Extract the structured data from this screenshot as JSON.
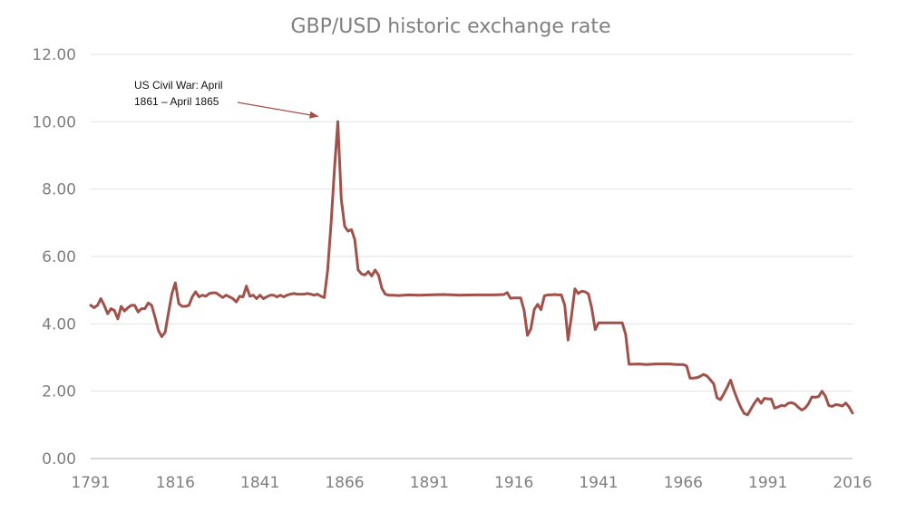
{
  "chart_data": {
    "type": "line",
    "title": "GBP/USD historic exchange rate",
    "xlabel": "",
    "ylabel": "",
    "x_range": [
      1791,
      2016
    ],
    "ylim": [
      0,
      12
    ],
    "x_ticks": [
      "1791",
      "1816",
      "1841",
      "1866",
      "1891",
      "1916",
      "1941",
      "1966",
      "1991",
      "2016"
    ],
    "y_ticks": [
      "0.00",
      "2.00",
      "4.00",
      "6.00",
      "8.00",
      "10.00",
      "12.00"
    ],
    "grid": true,
    "legend": "none",
    "colors": {
      "line": "#a0524a",
      "grid": "#e2e2e2",
      "text": "#7f7f7f",
      "arrow": "#a0524a"
    },
    "annotation": {
      "lines": [
        "US Civil War: April",
        "1861 – April 1865"
      ],
      "point_to": [
        1864,
        10.0
      ]
    },
    "series": [
      {
        "points": [
          [
            1791,
            4.55
          ],
          [
            1792,
            4.48
          ],
          [
            1793,
            4.55
          ],
          [
            1794,
            4.75
          ],
          [
            1795,
            4.55
          ],
          [
            1796,
            4.3
          ],
          [
            1797,
            4.45
          ],
          [
            1798,
            4.4
          ],
          [
            1799,
            4.15
          ],
          [
            1800,
            4.52
          ],
          [
            1801,
            4.38
          ],
          [
            1802,
            4.48
          ],
          [
            1803,
            4.55
          ],
          [
            1804,
            4.55
          ],
          [
            1805,
            4.35
          ],
          [
            1806,
            4.45
          ],
          [
            1807,
            4.45
          ],
          [
            1808,
            4.62
          ],
          [
            1809,
            4.55
          ],
          [
            1810,
            4.2
          ],
          [
            1811,
            3.8
          ],
          [
            1812,
            3.62
          ],
          [
            1813,
            3.75
          ],
          [
            1814,
            4.35
          ],
          [
            1815,
            4.9
          ],
          [
            1816,
            5.22
          ],
          [
            1817,
            4.6
          ],
          [
            1818,
            4.52
          ],
          [
            1819,
            4.52
          ],
          [
            1820,
            4.55
          ],
          [
            1821,
            4.8
          ],
          [
            1822,
            4.95
          ],
          [
            1823,
            4.8
          ],
          [
            1824,
            4.85
          ],
          [
            1825,
            4.82
          ],
          [
            1826,
            4.9
          ],
          [
            1827,
            4.92
          ],
          [
            1828,
            4.92
          ],
          [
            1829,
            4.85
          ],
          [
            1830,
            4.78
          ],
          [
            1831,
            4.85
          ],
          [
            1832,
            4.8
          ],
          [
            1833,
            4.75
          ],
          [
            1834,
            4.65
          ],
          [
            1835,
            4.82
          ],
          [
            1836,
            4.8
          ],
          [
            1837,
            5.12
          ],
          [
            1838,
            4.82
          ],
          [
            1839,
            4.85
          ],
          [
            1840,
            4.75
          ],
          [
            1841,
            4.85
          ],
          [
            1842,
            4.75
          ],
          [
            1843,
            4.8
          ],
          [
            1844,
            4.85
          ],
          [
            1845,
            4.85
          ],
          [
            1846,
            4.8
          ],
          [
            1847,
            4.85
          ],
          [
            1848,
            4.8
          ],
          [
            1849,
            4.85
          ],
          [
            1850,
            4.88
          ],
          [
            1851,
            4.9
          ],
          [
            1852,
            4.88
          ],
          [
            1853,
            4.88
          ],
          [
            1854,
            4.88
          ],
          [
            1855,
            4.9
          ],
          [
            1856,
            4.88
          ],
          [
            1857,
            4.85
          ],
          [
            1858,
            4.88
          ],
          [
            1859,
            4.82
          ],
          [
            1860,
            4.78
          ],
          [
            1861,
            5.6
          ],
          [
            1862,
            7.0
          ],
          [
            1863,
            8.6
          ],
          [
            1864,
            10.0
          ],
          [
            1865,
            7.7
          ],
          [
            1866,
            6.9
          ],
          [
            1867,
            6.75
          ],
          [
            1868,
            6.8
          ],
          [
            1869,
            6.5
          ],
          [
            1870,
            5.6
          ],
          [
            1871,
            5.48
          ],
          [
            1872,
            5.45
          ],
          [
            1873,
            5.55
          ],
          [
            1874,
            5.42
          ],
          [
            1875,
            5.6
          ],
          [
            1876,
            5.45
          ],
          [
            1877,
            5.05
          ],
          [
            1878,
            4.88
          ],
          [
            1879,
            4.85
          ],
          [
            1880,
            4.85
          ],
          [
            1882,
            4.84
          ],
          [
            1885,
            4.86
          ],
          [
            1888,
            4.85
          ],
          [
            1891,
            4.86
          ],
          [
            1895,
            4.87
          ],
          [
            1898,
            4.86
          ],
          [
            1900,
            4.85
          ],
          [
            1905,
            4.86
          ],
          [
            1910,
            4.86
          ],
          [
            1913,
            4.87
          ],
          [
            1914,
            4.93
          ],
          [
            1915,
            4.76
          ],
          [
            1916,
            4.77
          ],
          [
            1917,
            4.77
          ],
          [
            1918,
            4.77
          ],
          [
            1919,
            4.4
          ],
          [
            1920,
            3.66
          ],
          [
            1921,
            3.85
          ],
          [
            1922,
            4.43
          ],
          [
            1923,
            4.58
          ],
          [
            1924,
            4.42
          ],
          [
            1925,
            4.83
          ],
          [
            1926,
            4.86
          ],
          [
            1927,
            4.86
          ],
          [
            1928,
            4.87
          ],
          [
            1929,
            4.86
          ],
          [
            1930,
            4.86
          ],
          [
            1931,
            4.55
          ],
          [
            1932,
            3.52
          ],
          [
            1933,
            4.23
          ],
          [
            1934,
            5.04
          ],
          [
            1935,
            4.9
          ],
          [
            1936,
            4.97
          ],
          [
            1937,
            4.95
          ],
          [
            1938,
            4.89
          ],
          [
            1939,
            4.46
          ],
          [
            1940,
            3.83
          ],
          [
            1941,
            4.03
          ],
          [
            1942,
            4.03
          ],
          [
            1943,
            4.03
          ],
          [
            1944,
            4.03
          ],
          [
            1945,
            4.03
          ],
          [
            1946,
            4.03
          ],
          [
            1947,
            4.03
          ],
          [
            1948,
            4.03
          ],
          [
            1949,
            3.68
          ],
          [
            1950,
            2.8
          ],
          [
            1951,
            2.8
          ],
          [
            1953,
            2.81
          ],
          [
            1955,
            2.79
          ],
          [
            1958,
            2.81
          ],
          [
            1960,
            2.81
          ],
          [
            1962,
            2.81
          ],
          [
            1964,
            2.79
          ],
          [
            1966,
            2.79
          ],
          [
            1967,
            2.75
          ],
          [
            1968,
            2.39
          ],
          [
            1969,
            2.39
          ],
          [
            1970,
            2.4
          ],
          [
            1971,
            2.44
          ],
          [
            1972,
            2.5
          ],
          [
            1973,
            2.45
          ],
          [
            1974,
            2.34
          ],
          [
            1975,
            2.22
          ],
          [
            1976,
            1.8
          ],
          [
            1977,
            1.75
          ],
          [
            1978,
            1.92
          ],
          [
            1979,
            2.12
          ],
          [
            1980,
            2.33
          ],
          [
            1981,
            2.02
          ],
          [
            1982,
            1.75
          ],
          [
            1983,
            1.52
          ],
          [
            1984,
            1.34
          ],
          [
            1985,
            1.3
          ],
          [
            1986,
            1.47
          ],
          [
            1987,
            1.64
          ],
          [
            1988,
            1.78
          ],
          [
            1989,
            1.64
          ],
          [
            1990,
            1.79
          ],
          [
            1991,
            1.77
          ],
          [
            1992,
            1.77
          ],
          [
            1993,
            1.5
          ],
          [
            1994,
            1.53
          ],
          [
            1995,
            1.58
          ],
          [
            1996,
            1.56
          ],
          [
            1997,
            1.64
          ],
          [
            1998,
            1.66
          ],
          [
            1999,
            1.62
          ],
          [
            2000,
            1.52
          ],
          [
            2001,
            1.44
          ],
          [
            2002,
            1.5
          ],
          [
            2003,
            1.63
          ],
          [
            2004,
            1.83
          ],
          [
            2005,
            1.82
          ],
          [
            2006,
            1.84
          ],
          [
            2007,
            2.0
          ],
          [
            2008,
            1.85
          ],
          [
            2009,
            1.57
          ],
          [
            2010,
            1.55
          ],
          [
            2011,
            1.6
          ],
          [
            2012,
            1.59
          ],
          [
            2013,
            1.56
          ],
          [
            2014,
            1.65
          ],
          [
            2015,
            1.53
          ],
          [
            2016,
            1.35
          ]
        ]
      }
    ]
  }
}
